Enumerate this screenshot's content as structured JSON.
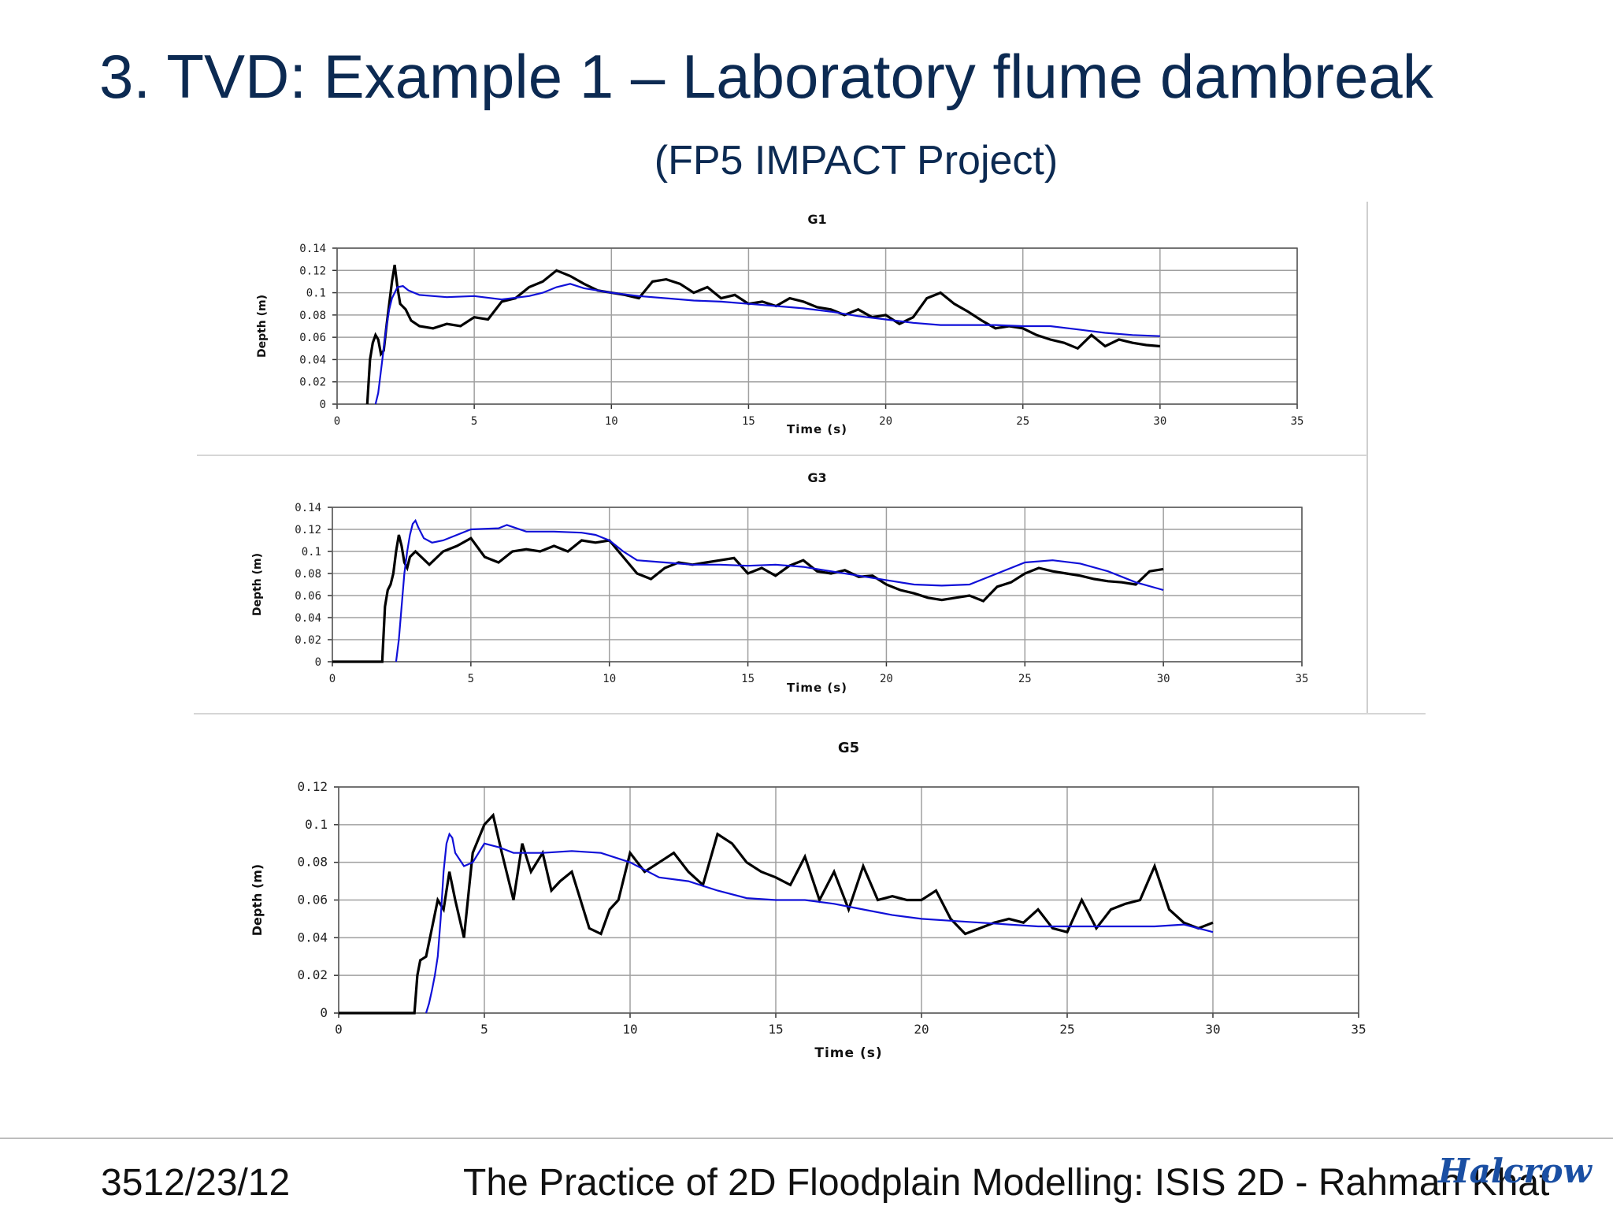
{
  "slide": {
    "title": "3. TVD: Example 1 – Laboratory flume dambreak",
    "subtitle": "(FP5 IMPACT Project)",
    "footer_left": "3512/23/12",
    "footer_mid": "The Practice of 2D Floodplain Modelling: ISIS 2D - Rahman Khat",
    "logo": "Halcrow"
  },
  "colors": {
    "measured": "#000000",
    "modelled": "#1010d8",
    "title": "#0c2a52",
    "grid": "#a0a0a0"
  },
  "chart_data": [
    {
      "type": "line",
      "title": "G1",
      "xlabel": "Time (s)",
      "ylabel": "Depth (m)",
      "xlim": [
        0,
        35
      ],
      "ylim": [
        0,
        0.14
      ],
      "xticks": [
        "0",
        "5",
        "10",
        "15",
        "20",
        "25",
        "30",
        "35"
      ],
      "yticks": [
        "0",
        "0.02",
        "0.04",
        "0.06",
        "0.08",
        "0.1",
        "0.12",
        "0.14"
      ],
      "grid": true,
      "series": [
        {
          "color": "#000000",
          "x": [
            1.1,
            1.2,
            1.3,
            1.4,
            1.5,
            1.6,
            1.7,
            1.8,
            1.9,
            2.0,
            2.1,
            2.2,
            2.3,
            2.5,
            2.7,
            3,
            3.5,
            4,
            4.5,
            5,
            5.5,
            6,
            6.5,
            7,
            7.5,
            8,
            8.5,
            9,
            9.5,
            10,
            10.5,
            11,
            11.5,
            12,
            12.5,
            13,
            13.5,
            14,
            14.5,
            15,
            15.5,
            16,
            16.5,
            17,
            17.5,
            18,
            18.5,
            19,
            19.5,
            20,
            20.5,
            21,
            21.5,
            22,
            22.5,
            23,
            23.5,
            24,
            24.5,
            25,
            25.5,
            26,
            26.5,
            27,
            27.5,
            28,
            28.5,
            29,
            29.5,
            30
          ],
          "y": [
            0,
            0.04,
            0.055,
            0.062,
            0.058,
            0.045,
            0.048,
            0.07,
            0.09,
            0.11,
            0.125,
            0.105,
            0.09,
            0.085,
            0.075,
            0.07,
            0.068,
            0.072,
            0.07,
            0.078,
            0.076,
            0.092,
            0.095,
            0.105,
            0.11,
            0.12,
            0.115,
            0.108,
            0.102,
            0.1,
            0.098,
            0.095,
            0.11,
            0.112,
            0.108,
            0.1,
            0.105,
            0.095,
            0.098,
            0.09,
            0.092,
            0.088,
            0.095,
            0.092,
            0.087,
            0.085,
            0.08,
            0.085,
            0.078,
            0.08,
            0.072,
            0.078,
            0.095,
            0.1,
            0.09,
            0.083,
            0.075,
            0.068,
            0.07,
            0.068,
            0.062,
            0.058,
            0.055,
            0.05,
            0.062,
            0.052,
            0.058,
            0.055,
            0.053,
            0.052
          ]
        },
        {
          "color": "#1010d8",
          "x": [
            1.4,
            1.5,
            1.6,
            1.7,
            1.8,
            1.9,
            2.0,
            2.1,
            2.2,
            2.4,
            2.6,
            3,
            3.5,
            4,
            5,
            6,
            7,
            7.5,
            8,
            8.5,
            9,
            10,
            11,
            12,
            13,
            14,
            15,
            16,
            17,
            18,
            19,
            20,
            21,
            22,
            23,
            24,
            25,
            26,
            27,
            28,
            29,
            30
          ],
          "y": [
            0,
            0.01,
            0.03,
            0.05,
            0.07,
            0.085,
            0.095,
            0.1,
            0.105,
            0.106,
            0.102,
            0.098,
            0.097,
            0.096,
            0.097,
            0.094,
            0.097,
            0.1,
            0.105,
            0.108,
            0.104,
            0.1,
            0.097,
            0.095,
            0.093,
            0.092,
            0.09,
            0.088,
            0.086,
            0.083,
            0.079,
            0.076,
            0.073,
            0.071,
            0.071,
            0.071,
            0.07,
            0.07,
            0.067,
            0.064,
            0.062,
            0.061
          ]
        }
      ]
    },
    {
      "type": "line",
      "title": "G3",
      "xlabel": "Time (s)",
      "ylabel": "Depth (m)",
      "xlim": [
        0,
        35
      ],
      "ylim": [
        0,
        0.14
      ],
      "xticks": [
        "0",
        "5",
        "10",
        "15",
        "20",
        "25",
        "30",
        "35"
      ],
      "yticks": [
        "0",
        "0.02",
        "0.04",
        "0.06",
        "0.08",
        "0.1",
        "0.12",
        "0.14"
      ],
      "grid": true,
      "series": [
        {
          "color": "#000000",
          "x": [
            0,
            1.8,
            1.9,
            2.0,
            2.1,
            2.2,
            2.3,
            2.4,
            2.5,
            2.6,
            2.7,
            2.8,
            3,
            3.5,
            4,
            4.5,
            5,
            5.5,
            6,
            6.5,
            7,
            7.5,
            8,
            8.5,
            9,
            9.5,
            10,
            10.5,
            11,
            11.5,
            12,
            12.5,
            13,
            13.5,
            14,
            14.5,
            15,
            15.5,
            16,
            16.5,
            17,
            17.5,
            18,
            18.5,
            19,
            19.5,
            20,
            20.5,
            21,
            21.5,
            22,
            22.5,
            23,
            23.5,
            24,
            24.5,
            25,
            25.5,
            26,
            26.5,
            27,
            27.5,
            28,
            28.5,
            29,
            29.5,
            30
          ],
          "y": [
            0,
            0,
            0.05,
            0.065,
            0.07,
            0.08,
            0.1,
            0.115,
            0.105,
            0.09,
            0.085,
            0.095,
            0.1,
            0.088,
            0.1,
            0.105,
            0.112,
            0.095,
            0.09,
            0.1,
            0.102,
            0.1,
            0.105,
            0.1,
            0.11,
            0.108,
            0.11,
            0.095,
            0.08,
            0.075,
            0.085,
            0.09,
            0.088,
            0.09,
            0.092,
            0.094,
            0.08,
            0.085,
            0.078,
            0.087,
            0.092,
            0.082,
            0.08,
            0.083,
            0.077,
            0.078,
            0.07,
            0.065,
            0.062,
            0.058,
            0.056,
            0.058,
            0.06,
            0.055,
            0.068,
            0.072,
            0.08,
            0.085,
            0.082,
            0.08,
            0.078,
            0.075,
            0.073,
            0.072,
            0.07,
            0.082,
            0.084
          ]
        },
        {
          "color": "#1010d8",
          "x": [
            2.3,
            2.4,
            2.5,
            2.6,
            2.7,
            2.8,
            2.9,
            3.0,
            3.1,
            3.3,
            3.6,
            4,
            5,
            6,
            6.3,
            7,
            8,
            9,
            9.5,
            10,
            10.5,
            11,
            12,
            13,
            14,
            15,
            16,
            17,
            18,
            19,
            20,
            21,
            22,
            23,
            24,
            25,
            26,
            27,
            28,
            29,
            30
          ],
          "y": [
            0,
            0.02,
            0.05,
            0.08,
            0.1,
            0.115,
            0.125,
            0.128,
            0.122,
            0.112,
            0.108,
            0.11,
            0.12,
            0.121,
            0.124,
            0.118,
            0.118,
            0.117,
            0.115,
            0.11,
            0.1,
            0.092,
            0.09,
            0.088,
            0.088,
            0.087,
            0.088,
            0.086,
            0.082,
            0.078,
            0.074,
            0.07,
            0.069,
            0.07,
            0.08,
            0.09,
            0.092,
            0.089,
            0.082,
            0.072,
            0.065
          ]
        }
      ]
    },
    {
      "type": "line",
      "title": "G5",
      "xlabel": "Time (s)",
      "ylabel": "Depth (m)",
      "xlim": [
        0,
        35
      ],
      "ylim": [
        0,
        0.12
      ],
      "xticks": [
        "0",
        "5",
        "10",
        "15",
        "20",
        "25",
        "30",
        "35"
      ],
      "yticks": [
        "0",
        "0.02",
        "0.04",
        "0.06",
        "0.08",
        "0.1",
        "0.12"
      ],
      "grid": true,
      "series": [
        {
          "color": "#000000",
          "x": [
            0,
            2.6,
            2.7,
            2.8,
            3.0,
            3.2,
            3.4,
            3.6,
            3.8,
            4,
            4.3,
            4.6,
            5,
            5.3,
            5.6,
            6,
            6.3,
            6.6,
            7,
            7.3,
            7.6,
            8,
            8.3,
            8.6,
            9,
            9.3,
            9.6,
            10,
            10.5,
            11,
            11.5,
            12,
            12.5,
            13,
            13.5,
            14,
            14.5,
            15,
            15.5,
            16,
            16.5,
            17,
            17.5,
            18,
            18.5,
            19,
            19.5,
            20,
            20.5,
            21,
            21.5,
            22,
            22.5,
            23,
            23.5,
            24,
            24.5,
            25,
            25.5,
            26,
            26.5,
            27,
            27.5,
            28,
            28.5,
            29,
            29.5,
            30
          ],
          "y": [
            0,
            0,
            0.02,
            0.028,
            0.03,
            0.045,
            0.06,
            0.055,
            0.075,
            0.06,
            0.04,
            0.085,
            0.1,
            0.105,
            0.085,
            0.06,
            0.09,
            0.075,
            0.085,
            0.065,
            0.07,
            0.075,
            0.06,
            0.045,
            0.042,
            0.055,
            0.06,
            0.085,
            0.075,
            0.08,
            0.085,
            0.075,
            0.068,
            0.095,
            0.09,
            0.08,
            0.075,
            0.072,
            0.068,
            0.083,
            0.06,
            0.075,
            0.055,
            0.078,
            0.06,
            0.062,
            0.06,
            0.06,
            0.065,
            0.05,
            0.042,
            0.045,
            0.048,
            0.05,
            0.048,
            0.055,
            0.045,
            0.043,
            0.06,
            0.045,
            0.055,
            0.058,
            0.06,
            0.078,
            0.055,
            0.048,
            0.045,
            0.048
          ]
        },
        {
          "color": "#1010d8",
          "x": [
            3.0,
            3.1,
            3.2,
            3.3,
            3.4,
            3.5,
            3.6,
            3.7,
            3.8,
            3.9,
            4.0,
            4.3,
            4.6,
            5,
            5.5,
            6,
            7,
            8,
            9,
            10,
            11,
            12,
            13,
            14,
            15,
            16,
            17,
            18,
            19,
            20,
            21,
            22,
            23,
            24,
            25,
            26,
            27,
            28,
            29,
            30
          ],
          "y": [
            0,
            0.005,
            0.012,
            0.02,
            0.03,
            0.05,
            0.075,
            0.09,
            0.095,
            0.093,
            0.085,
            0.078,
            0.08,
            0.09,
            0.088,
            0.085,
            0.085,
            0.086,
            0.085,
            0.08,
            0.072,
            0.07,
            0.065,
            0.061,
            0.06,
            0.06,
            0.058,
            0.055,
            0.052,
            0.05,
            0.049,
            0.048,
            0.047,
            0.046,
            0.046,
            0.046,
            0.046,
            0.046,
            0.047,
            0.043
          ]
        }
      ]
    }
  ]
}
